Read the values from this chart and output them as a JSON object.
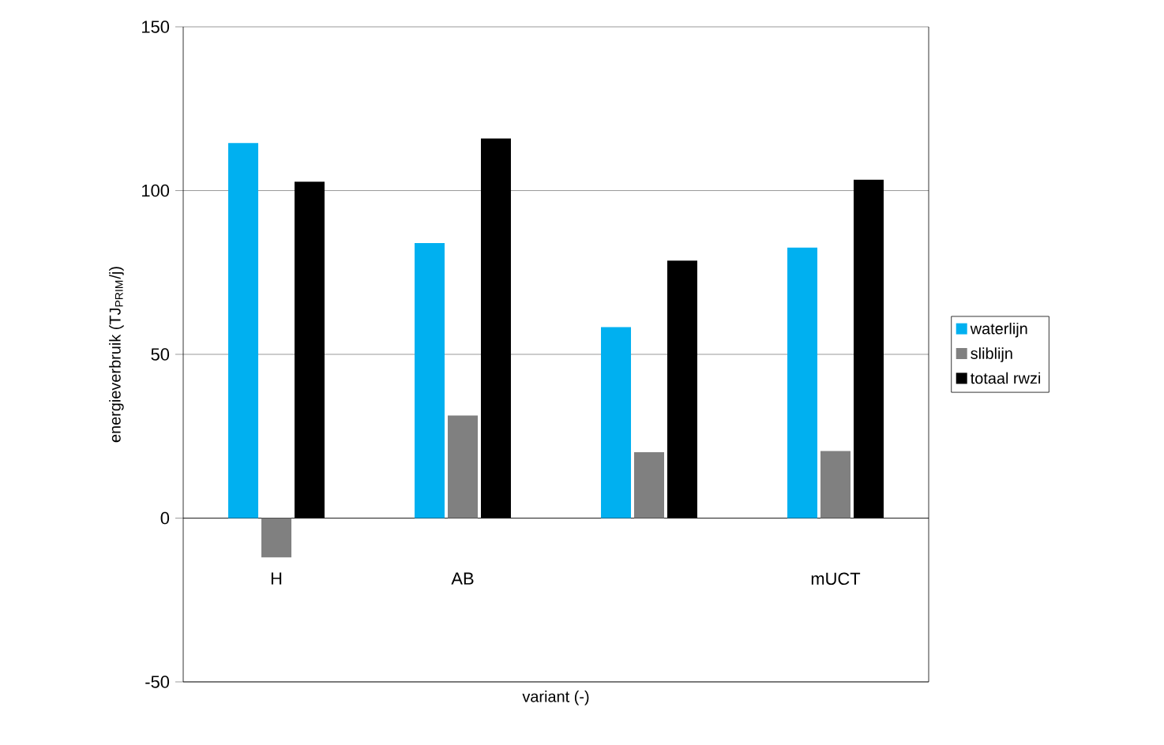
{
  "chart_data": {
    "type": "bar",
    "xlabel": "variant (-)",
    "ylabel": "energieverbruik (TJ$_{PRIM}$/j)",
    "categories": [
      "H",
      "AB",
      null,
      "mUCT"
    ],
    "series": [
      {
        "name": "waterlijn",
        "color": "#00b0f0",
        "values": [
          114.5,
          84,
          58.3,
          82.6
        ]
      },
      {
        "name": "sliblijn",
        "color": "#808080",
        "values": [
          -12,
          31.3,
          20.1,
          20.5
        ]
      },
      {
        "name": "totaal rwzi",
        "color": "#000000",
        "values": [
          102.7,
          115.9,
          78.6,
          103.3
        ]
      }
    ],
    "ylim": [
      -50,
      150
    ],
    "yticks": [
      -50,
      0,
      50,
      100,
      150
    ],
    "grid": "y",
    "legend": "right"
  }
}
